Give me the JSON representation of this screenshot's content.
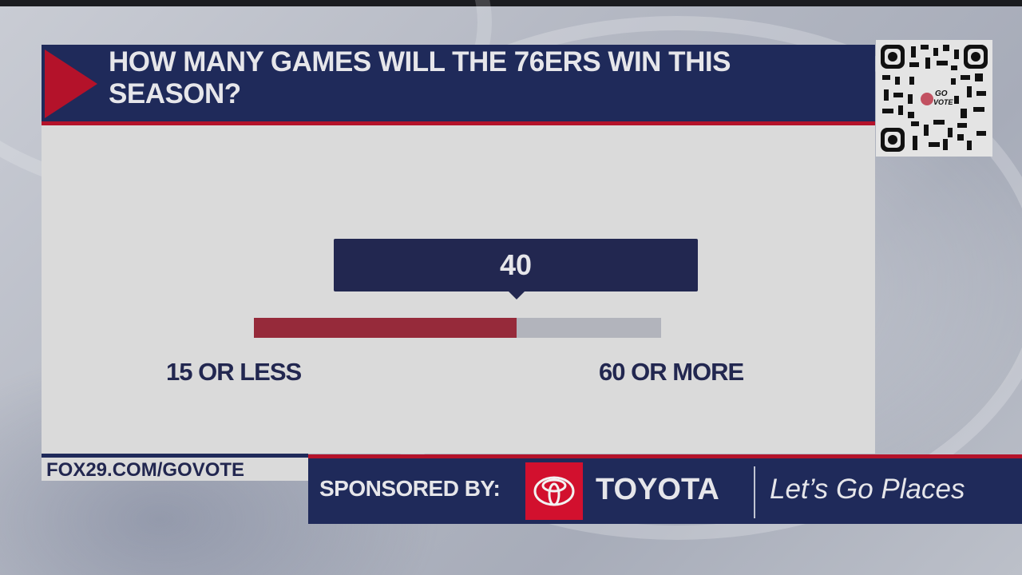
{
  "poll": {
    "question": "HOW MANY GAMES WILL THE 76ERS WIN THIS SEASON?",
    "current_value": "40",
    "min_label": "15 OR LESS",
    "max_label": "60 OR MORE",
    "fill_percent": 64.5
  },
  "footer": {
    "url": "FOX29.COM/GOVOTE",
    "sponsored_by_label": "SPONSORED BY:",
    "sponsor_name": "TOYOTA",
    "sponsor_tagline": "Let’s Go Places"
  },
  "qr": {
    "center_label": "GO VOTE"
  },
  "colors": {
    "navy": "#1f2a5a",
    "red": "#b4122a",
    "bar_fill": "#962a3a",
    "bar_track": "#b2b4bc",
    "panel": "#dadada",
    "toyota_red": "#d2102e"
  }
}
